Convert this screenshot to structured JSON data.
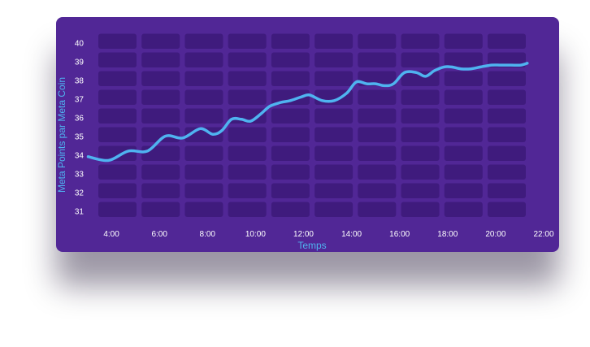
{
  "colors": {
    "card_bg": "#512796",
    "cell": "#3f1b7d",
    "line": "#4fb3f0",
    "tick_text": "#ffffff",
    "axis_title": "#4fb3f0"
  },
  "chart_data": {
    "type": "line",
    "xlabel": "Temps",
    "ylabel": "Meta Points par Meta Coin",
    "x_ticks": [
      "4:00",
      "6:00",
      "8:00",
      "10:00",
      "12:00",
      "14:00",
      "16:00",
      "18:00",
      "20:00",
      "22:00"
    ],
    "y_ticks": [
      31,
      32,
      33,
      34,
      35,
      36,
      37,
      38,
      39,
      40
    ],
    "xlim_hours": [
      3.05,
      22.0
    ],
    "ylim": [
      30.5,
      40.5
    ],
    "grid": true,
    "series": [
      {
        "x": [
          "3:02",
          "3:53",
          "4:42",
          "5:30",
          "6:15",
          "6:58",
          "7:42",
          "8:13",
          "8:36",
          "9:00",
          "9:25",
          "9:48",
          "10:14",
          "10:36",
          "11:03",
          "11:27",
          "11:55",
          "12:15",
          "12:47",
          "13:17",
          "13:48",
          "14:12",
          "14:38",
          "15:00",
          "15:22",
          "15:45",
          "16:12",
          "16:42",
          "17:05",
          "17:27",
          "17:51",
          "18:10",
          "18:33",
          "18:58",
          "19:22",
          "19:49",
          "20:13",
          "20:38",
          "21:03",
          "21:19"
        ],
        "y": [
          33.9,
          33.7,
          34.2,
          34.2,
          35.0,
          34.9,
          35.4,
          35.1,
          35.3,
          35.9,
          35.9,
          35.8,
          36.2,
          36.6,
          36.8,
          36.9,
          37.1,
          37.2,
          36.9,
          36.9,
          37.3,
          37.9,
          37.8,
          37.8,
          37.7,
          37.8,
          38.4,
          38.4,
          38.2,
          38.5,
          38.7,
          38.7,
          38.6,
          38.6,
          38.7,
          38.8,
          38.8,
          38.8,
          38.8,
          38.9
        ]
      }
    ]
  }
}
